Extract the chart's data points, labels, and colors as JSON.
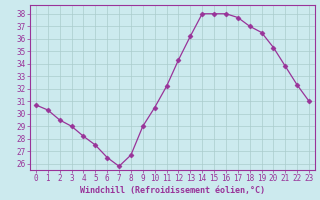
{
  "x": [
    0,
    1,
    2,
    3,
    4,
    5,
    6,
    7,
    8,
    9,
    10,
    11,
    12,
    13,
    14,
    15,
    16,
    17,
    18,
    19,
    20,
    21,
    22,
    23
  ],
  "y": [
    30.7,
    30.3,
    29.5,
    29.0,
    28.2,
    27.5,
    26.5,
    25.8,
    26.7,
    29.0,
    30.5,
    32.2,
    34.3,
    36.2,
    38.0,
    38.0,
    38.0,
    37.7,
    37.0,
    36.5,
    35.3,
    33.8,
    32.3,
    31.0
  ],
  "line_color": "#993399",
  "marker": "D",
  "marker_size": 2.5,
  "bg_color": "#cceaee",
  "grid_color": "#aacccc",
  "xlabel": "Windchill (Refroidissement éolien,°C)",
  "ylabel": "",
  "ylim": [
    25.5,
    38.7
  ],
  "xlim": [
    -0.5,
    23.5
  ],
  "yticks": [
    26,
    27,
    28,
    29,
    30,
    31,
    32,
    33,
    34,
    35,
    36,
    37,
    38
  ],
  "xticks": [
    0,
    1,
    2,
    3,
    4,
    5,
    6,
    7,
    8,
    9,
    10,
    11,
    12,
    13,
    14,
    15,
    16,
    17,
    18,
    19,
    20,
    21,
    22,
    23
  ],
  "tick_color": "#993399",
  "label_color": "#993399",
  "spine_color": "#993399",
  "axis_bg": "#cceaee"
}
